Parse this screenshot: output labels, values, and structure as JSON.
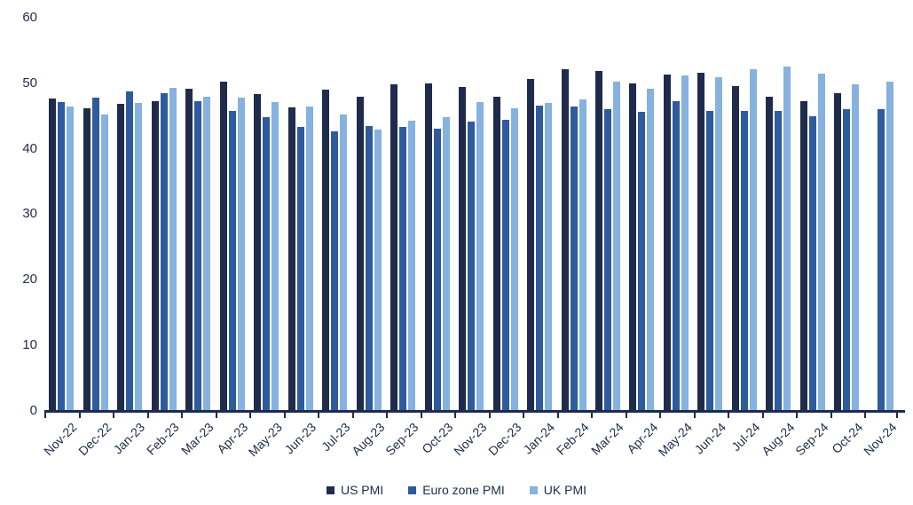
{
  "chart_data": {
    "type": "bar",
    "title": "",
    "xlabel": "",
    "ylabel": "",
    "categories": [
      "Nov-22",
      "Dec-22",
      "Jan-23",
      "Feb-23",
      "Mar-23",
      "Apr-23",
      "May-23",
      "Jun-23",
      "Jul-23",
      "Aug-23",
      "Sep-23",
      "Oct-23",
      "Nov-23",
      "Dec-23",
      "Jan-24",
      "Feb-24",
      "Mar-24",
      "Apr-24",
      "May-24",
      "Jun-24",
      "Jul-24",
      "Aug-24",
      "Sep-24",
      "Oct-24",
      "Nov-24"
    ],
    "series": [
      {
        "name": "US PMI",
        "color": "#1f2b4c",
        "values": [
          47.7,
          46.2,
          46.9,
          47.3,
          49.2,
          50.2,
          48.4,
          46.3,
          49.0,
          47.9,
          49.8,
          50.0,
          49.4,
          47.9,
          50.7,
          52.2,
          51.9,
          50.0,
          51.3,
          51.6,
          49.6,
          47.9,
          47.3,
          48.5,
          null
        ]
      },
      {
        "name": "Euro zone PMI",
        "color": "#2e5b9e",
        "values": [
          47.1,
          47.8,
          48.8,
          48.5,
          47.3,
          45.8,
          44.8,
          43.4,
          42.7,
          43.5,
          43.4,
          43.1,
          44.2,
          44.4,
          46.6,
          46.5,
          46.1,
          45.7,
          47.3,
          45.8,
          45.8,
          45.8,
          45.0,
          46.0,
          46.0
        ]
      },
      {
        "name": "UK PMI",
        "color": "#85b2de",
        "values": [
          46.5,
          45.3,
          47.0,
          49.3,
          47.9,
          47.8,
          47.1,
          46.5,
          45.3,
          43.0,
          44.3,
          44.8,
          47.2,
          46.2,
          47.0,
          47.5,
          50.3,
          49.1,
          51.2,
          50.9,
          52.1,
          52.5,
          51.5,
          49.9,
          50.2
        ]
      }
    ],
    "ylim": [
      0,
      60
    ],
    "yticks": [
      0,
      10,
      20,
      30,
      40,
      50,
      60
    ],
    "grid": false,
    "legend_position": "bottom",
    "axis_color": "#1f2b4c",
    "background": "#ffffff"
  }
}
